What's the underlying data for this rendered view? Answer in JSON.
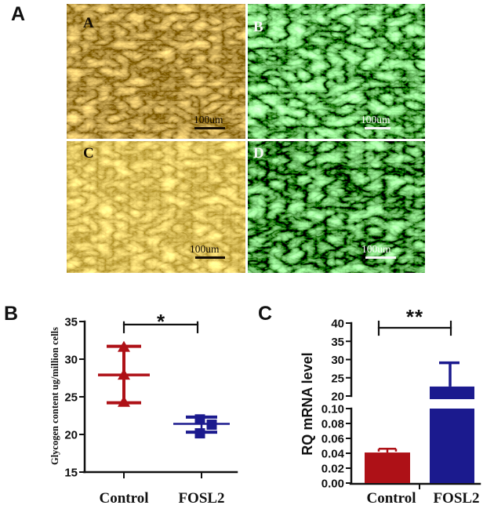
{
  "panel_labels": {
    "a": "A",
    "b": "B",
    "c": "C"
  },
  "micrographs": [
    {
      "letter": "A",
      "type": "brightfield-phase-contrast-cells",
      "scale_label": "100um",
      "text_color": "#140c02"
    },
    {
      "letter": "B",
      "type": "gfp-fluorescence-cells",
      "scale_label": "100um",
      "text_color": "#f8f8f8"
    },
    {
      "letter": "C",
      "type": "brightfield-phase-contrast-cells",
      "scale_label": "100um",
      "text_color": "#140c02"
    },
    {
      "letter": "D",
      "type": "gfp-fluorescence-cells",
      "scale_label": "100um",
      "text_color": "#f8f8f8"
    }
  ],
  "colors": {
    "control_red": "#AE1117",
    "fosl2_navy": "#1B1A8E",
    "axis": "#111111"
  },
  "chart_data": [
    {
      "id": "glycogen-content",
      "type": "scatter",
      "title": "",
      "ylabel": "Glycogen content ug/million cells",
      "ylim": [
        15,
        35
      ],
      "yticks": [
        15,
        20,
        25,
        30,
        35
      ],
      "categories": [
        "Control",
        "FOSL2"
      ],
      "series": [
        {
          "name": "Control",
          "color": "#AE1117",
          "marker": "triangle",
          "points": [
            {
              "v": 31.6,
              "dx": 0
            },
            {
              "v": 27.9,
              "dx": 0
            },
            {
              "v": 24.3,
              "dx": 0
            }
          ],
          "mean": 27.9,
          "error_low": 24.2,
          "error_high": 31.7
        },
        {
          "name": "FOSL2",
          "color": "#1B1A8E",
          "marker": "square",
          "points": [
            {
              "v": 22.0,
              "dx": -2
            },
            {
              "v": 21.3,
              "dx": 13
            },
            {
              "v": 20.15,
              "dx": -2
            }
          ],
          "mean": 21.4,
          "error_low": 20.3,
          "error_high": 22.3
        }
      ],
      "significance": {
        "label": "*",
        "between": [
          "Control",
          "FOSL2"
        ],
        "y": 34.6
      }
    },
    {
      "id": "rq-mrna-level",
      "type": "bar",
      "title": "",
      "ylabel": "RQ mRNA level",
      "axis_break": true,
      "lower_ylim": [
        0,
        0.1
      ],
      "lower_yticks": [
        "0.00",
        "0.02",
        "0.04",
        "0.06",
        "0.08",
        "0.10"
      ],
      "upper_ylim": [
        20,
        40
      ],
      "upper_yticks": [
        "20",
        "25",
        "30",
        "35",
        "40"
      ],
      "categories": [
        "Control",
        "FOSL2"
      ],
      "bars": [
        {
          "name": "Control",
          "color": "#AE1117",
          "value": 0.041,
          "error_high": 0.046
        },
        {
          "name": "FOSL2",
          "color": "#1B1A8E",
          "value": 22.6,
          "error_high": 29.1
        }
      ],
      "significance": {
        "label": "**",
        "between": [
          "Control",
          "FOSL2"
        ]
      }
    }
  ]
}
